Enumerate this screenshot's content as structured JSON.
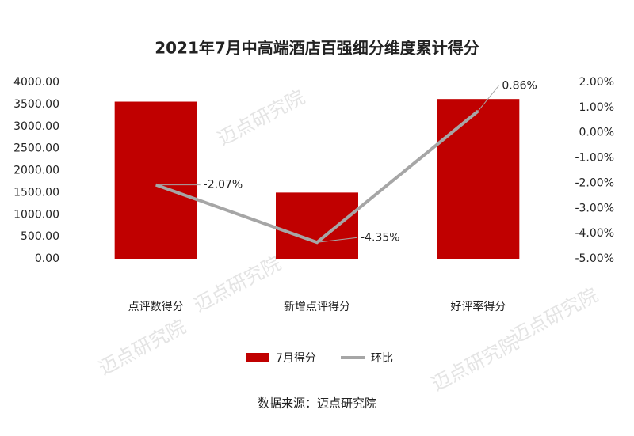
{
  "chart_data": {
    "type": "bar-line",
    "title": "2021年7月中高端酒店百强细分维度累计得分",
    "categories": [
      "点评数得分",
      "新增点评得分",
      "好评率得分"
    ],
    "series": [
      {
        "name": "7月得分",
        "type": "bar",
        "color": "#c00000",
        "values": [
          3560,
          1500,
          3620
        ]
      },
      {
        "name": "环比",
        "type": "line",
        "axis": "y2",
        "color": "#a6a6a6",
        "values": [
          -2.07,
          -4.35,
          0.86
        ],
        "value_labels": [
          "-2.07%",
          "-4.35%",
          "0.86%"
        ]
      }
    ],
    "ylim": [
      0,
      4000
    ],
    "yticks": [
      {
        "value": 0,
        "label": "0.00"
      },
      {
        "value": 500,
        "label": "500.00"
      },
      {
        "value": 1000,
        "label": "1000.00"
      },
      {
        "value": 1500,
        "label": "1500.00"
      },
      {
        "value": 2000,
        "label": "2000.00"
      },
      {
        "value": 2500,
        "label": "2500.00"
      },
      {
        "value": 3000,
        "label": "3000.00"
      },
      {
        "value": 3500,
        "label": "3500.00"
      },
      {
        "value": 4000,
        "label": "4000.00"
      }
    ],
    "y2lim": [
      -5,
      2
    ],
    "y2ticks": [
      {
        "value": -5,
        "label": "-5.00%"
      },
      {
        "value": -4,
        "label": "-4.00%"
      },
      {
        "value": -3,
        "label": "-3.00%"
      },
      {
        "value": -2,
        "label": "-2.00%"
      },
      {
        "value": -1,
        "label": "-1.00%"
      },
      {
        "value": 0,
        "label": "0.00%"
      },
      {
        "value": 1,
        "label": "1.00%"
      },
      {
        "value": 2,
        "label": "2.00%"
      }
    ],
    "legend": "bottom",
    "source": "数据来源：迈点研究院",
    "watermark": "迈点研究院"
  }
}
